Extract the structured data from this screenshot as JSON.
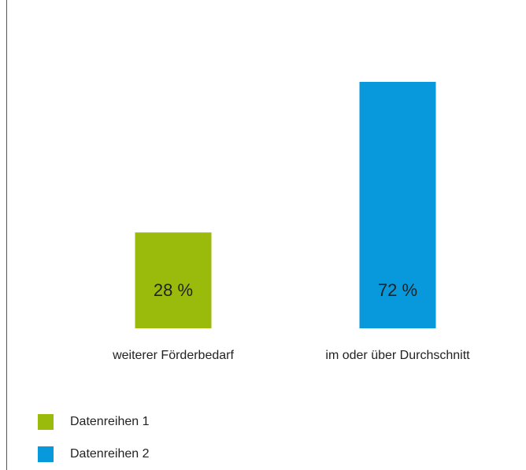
{
  "chart_data": {
    "type": "bar",
    "categories": [
      "weiterer Förderbedarf",
      "im oder über Durchschnitt"
    ],
    "series": [
      {
        "name": "Datenreihen 1",
        "color": "#9bbb0c",
        "values": [
          28,
          null
        ],
        "value_labels": [
          "28 %",
          null
        ]
      },
      {
        "name": "Datenreihen 2",
        "color": "#0899dc",
        "values": [
          null,
          72
        ],
        "value_labels": [
          null,
          "72 %"
        ]
      }
    ]
  }
}
